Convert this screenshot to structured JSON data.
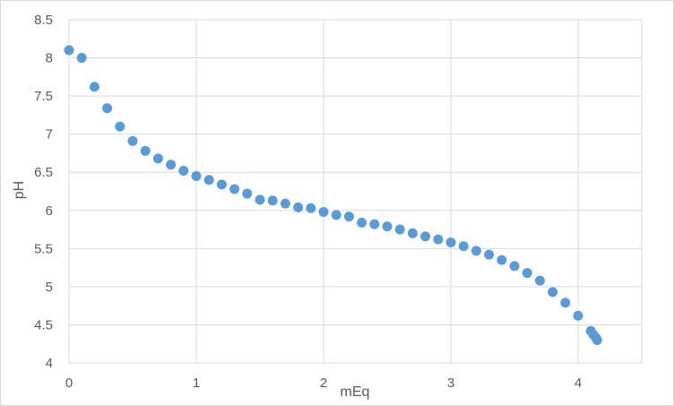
{
  "chart_data": {
    "type": "scatter",
    "xlabel": "mEq",
    "ylabel": "pH",
    "xlim": [
      0,
      4.5
    ],
    "ylim": [
      4,
      8.5
    ],
    "xticks": [
      0,
      1,
      2,
      3,
      4
    ],
    "yticks": [
      4,
      4.5,
      5,
      5.5,
      6,
      6.5,
      7,
      7.5,
      8,
      8.5
    ],
    "grid": true,
    "legend": "none",
    "marker_color": "#5B9BD5",
    "series": [
      {
        "x": [
          0,
          0.1,
          0.2,
          0.3,
          0.4,
          0.5,
          0.6,
          0.7,
          0.8,
          0.9,
          1.0,
          1.1,
          1.2,
          1.3,
          1.4,
          1.5,
          1.6,
          1.7,
          1.8,
          1.9,
          2.0,
          2.1,
          2.2,
          2.3,
          2.4,
          2.5,
          2.6,
          2.7,
          2.8,
          2.9,
          3.0,
          3.1,
          3.2,
          3.3,
          3.4,
          3.5,
          3.6,
          3.7,
          3.8,
          3.9,
          4.0,
          4.1,
          4.12,
          4.14,
          4.15
        ],
        "y": [
          8.1,
          8.0,
          7.62,
          7.34,
          7.1,
          6.91,
          6.78,
          6.68,
          6.6,
          6.52,
          6.45,
          6.4,
          6.34,
          6.28,
          6.22,
          6.14,
          6.13,
          6.09,
          6.04,
          6.03,
          5.98,
          5.94,
          5.92,
          5.84,
          5.82,
          5.79,
          5.75,
          5.7,
          5.66,
          5.62,
          5.58,
          5.53,
          5.47,
          5.42,
          5.35,
          5.27,
          5.18,
          5.08,
          4.93,
          4.79,
          4.62,
          4.42,
          4.37,
          4.33,
          4.3
        ]
      }
    ]
  }
}
